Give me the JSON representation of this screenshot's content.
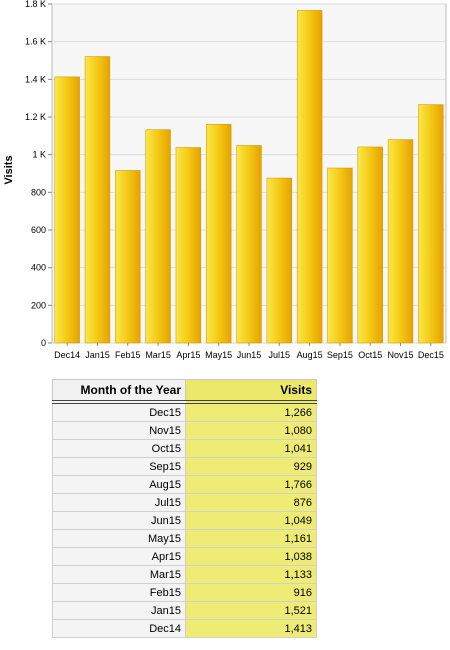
{
  "chart_data": {
    "type": "bar",
    "title": "",
    "xlabel": "",
    "ylabel": "Visits",
    "ylim": [
      0,
      1800
    ],
    "yticks": [
      0,
      200,
      400,
      600,
      800,
      1000,
      1200,
      1400,
      1600,
      1800
    ],
    "ytick_labels": [
      "0",
      "200",
      "400",
      "600",
      "800",
      "1 K",
      "1.2 K",
      "1.4 K",
      "1.6 K",
      "1.8 K"
    ],
    "categories": [
      "Dec14",
      "Jan15",
      "Feb15",
      "Mar15",
      "Apr15",
      "May15",
      "Jun15",
      "Jul15",
      "Aug15",
      "Sep15",
      "Oct15",
      "Nov15",
      "Dec15"
    ],
    "values": [
      1413,
      1521,
      916,
      1133,
      1038,
      1161,
      1049,
      876,
      1766,
      929,
      1041,
      1080,
      1266
    ],
    "grid": true,
    "colors": {
      "bar_light": "#f8e030",
      "bar_dark": "#e8a000",
      "bar_edge": "#d09000"
    }
  },
  "table": {
    "headers": {
      "month": "Month of the Year",
      "visits": "Visits"
    },
    "rows": [
      {
        "month": "Dec15",
        "visits": "1,266"
      },
      {
        "month": "Nov15",
        "visits": "1,080"
      },
      {
        "month": "Oct15",
        "visits": "1,041"
      },
      {
        "month": "Sep15",
        "visits": "929"
      },
      {
        "month": "Aug15",
        "visits": "1,766"
      },
      {
        "month": "Jul15",
        "visits": "876"
      },
      {
        "month": "Jun15",
        "visits": "1,049"
      },
      {
        "month": "May15",
        "visits": "1,161"
      },
      {
        "month": "Apr15",
        "visits": "1,038"
      },
      {
        "month": "Mar15",
        "visits": "1,133"
      },
      {
        "month": "Feb15",
        "visits": "916"
      },
      {
        "month": "Jan15",
        "visits": "1,521"
      },
      {
        "month": "Dec14",
        "visits": "1,413"
      }
    ],
    "colors": {
      "visits_column": "#eeec74",
      "month_column": "#f4f4f4"
    }
  }
}
